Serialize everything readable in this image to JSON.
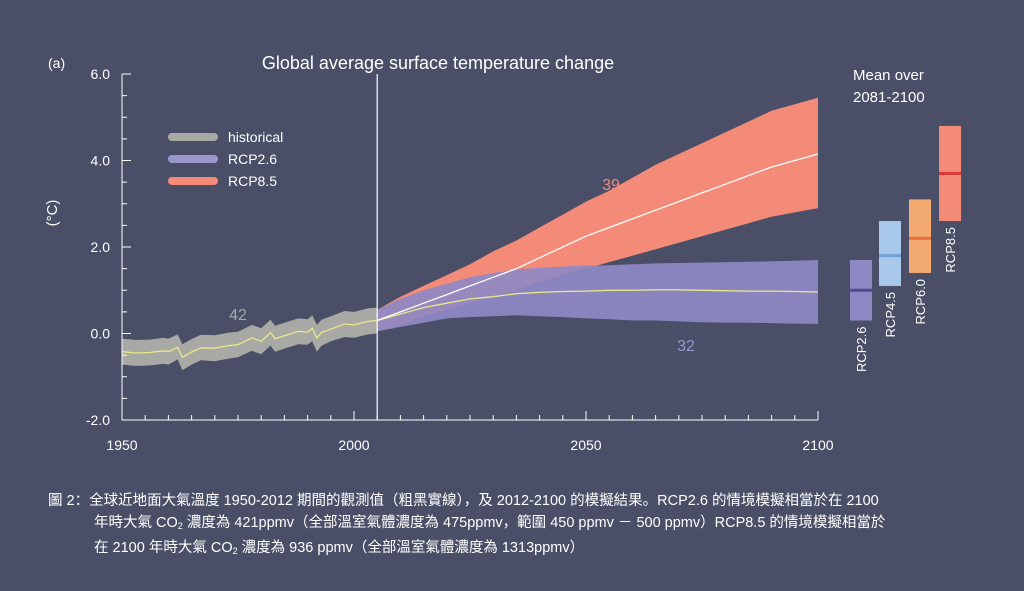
{
  "chart_data": {
    "type": "line",
    "panel_label": "(a)",
    "title": "Global average surface temperature change",
    "ylabel": "(°C)",
    "xlim": [
      1950,
      2100
    ],
    "ylim": [
      -2.0,
      6.0
    ],
    "x_ticks": [
      "1950",
      "2000",
      "2050",
      "2100"
    ],
    "y_ticks": [
      "6.0",
      "4.0",
      "2.0",
      "0.0",
      "-2.0"
    ],
    "divider_year": 2005,
    "legend": [
      {
        "name": "historical",
        "color": "#a8a9a5"
      },
      {
        "name": "RCP2.6",
        "color": "#9c96cf"
      },
      {
        "name": "RCP8.5",
        "color": "#f48b78"
      }
    ],
    "series": [
      {
        "name": "historical",
        "model_count": "42",
        "band_color": "#a8a9a5",
        "mean_color": "#e8e88a",
        "x": [
          1950,
          1953,
          1956,
          1959,
          1960,
          1962,
          1963,
          1965,
          1967,
          1970,
          1973,
          1975,
          1978,
          1980,
          1982,
          1983,
          1985,
          1988,
          1990,
          1991,
          1992,
          1993,
          1995,
          1998,
          2000,
          2003,
          2005
        ],
        "mean": [
          -0.42,
          -0.45,
          -0.44,
          -0.4,
          -0.42,
          -0.32,
          -0.55,
          -0.43,
          -0.33,
          -0.34,
          -0.28,
          -0.26,
          -0.1,
          -0.18,
          0.02,
          -0.12,
          -0.05,
          0.05,
          0.03,
          0.12,
          -0.1,
          0.02,
          0.1,
          0.22,
          0.2,
          0.28,
          0.3
        ],
        "lower": [
          -0.72,
          -0.75,
          -0.74,
          -0.7,
          -0.72,
          -0.6,
          -0.85,
          -0.72,
          -0.62,
          -0.64,
          -0.58,
          -0.55,
          -0.4,
          -0.48,
          -0.28,
          -0.42,
          -0.35,
          -0.25,
          -0.26,
          -0.18,
          -0.42,
          -0.28,
          -0.18,
          -0.08,
          -0.1,
          -0.02,
          0.0
        ],
        "upper": [
          -0.12,
          -0.15,
          -0.14,
          -0.1,
          -0.12,
          -0.02,
          -0.25,
          -0.13,
          -0.03,
          -0.04,
          0.02,
          0.04,
          0.2,
          0.12,
          0.32,
          0.18,
          0.25,
          0.35,
          0.33,
          0.42,
          0.2,
          0.32,
          0.4,
          0.52,
          0.5,
          0.58,
          0.6
        ]
      },
      {
        "name": "RCP2.6",
        "model_count": "32",
        "band_color": "#8e89c4",
        "mean_color": "#e8e88a",
        "x": [
          2005,
          2010,
          2015,
          2020,
          2025,
          2030,
          2035,
          2040,
          2045,
          2050,
          2055,
          2060,
          2065,
          2070,
          2075,
          2080,
          2085,
          2090,
          2095,
          2100
        ],
        "mean": [
          0.3,
          0.45,
          0.6,
          0.7,
          0.8,
          0.85,
          0.92,
          0.95,
          0.97,
          0.98,
          1.0,
          1.0,
          1.01,
          1.01,
          1.0,
          0.99,
          0.98,
          0.98,
          0.97,
          0.96
        ],
        "lower": [
          0.05,
          0.15,
          0.25,
          0.35,
          0.38,
          0.4,
          0.42,
          0.4,
          0.38,
          0.35,
          0.33,
          0.3,
          0.3,
          0.28,
          0.26,
          0.25,
          0.25,
          0.24,
          0.23,
          0.22
        ],
        "upper": [
          0.55,
          0.8,
          1.0,
          1.15,
          1.3,
          1.4,
          1.48,
          1.52,
          1.55,
          1.57,
          1.58,
          1.6,
          1.62,
          1.63,
          1.64,
          1.65,
          1.66,
          1.67,
          1.68,
          1.7
        ]
      },
      {
        "name": "RCP8.5",
        "model_count": "39",
        "band_color": "#f48b78",
        "mean_color": "#ffffff",
        "x": [
          2005,
          2010,
          2015,
          2020,
          2025,
          2030,
          2035,
          2040,
          2045,
          2050,
          2055,
          2060,
          2065,
          2070,
          2075,
          2080,
          2085,
          2090,
          2095,
          2100
        ],
        "mean": [
          0.3,
          0.5,
          0.7,
          0.9,
          1.1,
          1.3,
          1.5,
          1.75,
          2.0,
          2.25,
          2.45,
          2.65,
          2.85,
          3.05,
          3.25,
          3.45,
          3.65,
          3.85,
          4.0,
          4.15
        ],
        "lower": [
          0.05,
          0.2,
          0.4,
          0.55,
          0.7,
          0.85,
          1.0,
          1.2,
          1.35,
          1.5,
          1.65,
          1.8,
          1.95,
          2.1,
          2.25,
          2.4,
          2.55,
          2.7,
          2.8,
          2.9
        ],
        "upper": [
          0.55,
          0.85,
          1.1,
          1.35,
          1.6,
          1.9,
          2.15,
          2.45,
          2.75,
          3.05,
          3.3,
          3.6,
          3.9,
          4.15,
          4.4,
          4.65,
          4.9,
          5.15,
          5.3,
          5.45
        ]
      }
    ],
    "mean_over_title": [
      "Mean over",
      "2081-2100"
    ],
    "mean_bars": [
      {
        "name": "RCP2.6",
        "low": 0.3,
        "high": 1.7,
        "mean": 1.0,
        "color": "#8e89c4",
        "line_color": "#4e4a8e"
      },
      {
        "name": "RCP4.5",
        "low": 1.1,
        "high": 2.6,
        "mean": 1.8,
        "color": "#a9c9ea",
        "line_color": "#6fa0d8"
      },
      {
        "name": "RCP6.0",
        "low": 1.4,
        "high": 3.1,
        "mean": 2.2,
        "color": "#f4ab72",
        "line_color": "#e6703a"
      },
      {
        "name": "RCP8.5",
        "low": 2.6,
        "high": 4.8,
        "mean": 3.7,
        "color": "#f48b78",
        "line_color": "#d93a32"
      }
    ]
  },
  "caption": {
    "line1": "圖 2：全球近地面大氣溫度 1950-2012 期間的觀測值（粗黑實線），及 2012-2100 的模擬結果。RCP2.6 的情境模擬相當於在 2100",
    "line2a": "年時大氣 CO",
    "line2sub": "2",
    "line2b": " 濃度為 421ppmv（全部溫室氣體濃度為 475ppmv，範圍 450 ppmv － 500 ppmv）RCP8.5 的情境模擬相當於",
    "line3a": "在 2100 年時大氣 CO",
    "line3sub": "2",
    "line3b": " 濃度為 936 ppmv（全部溫室氣體濃度為 1313ppmv）"
  }
}
